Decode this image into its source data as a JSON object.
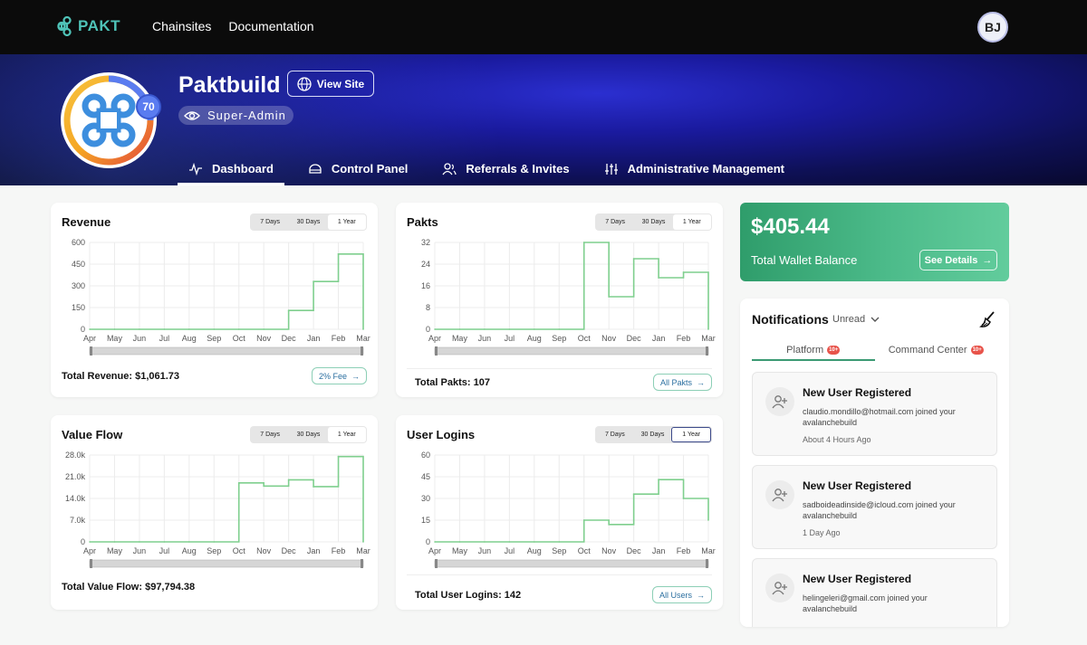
{
  "app": {
    "logo_text": "PAKT",
    "user_initials": "BJ"
  },
  "topnav": [
    "Chainsites",
    "Documentation"
  ],
  "org": {
    "name": "Paktbuild",
    "level": "70",
    "role": "Super-Admin",
    "view_site_label": "View Site"
  },
  "tabs": [
    {
      "label": "Dashboard",
      "icon": "activity-icon",
      "active": true
    },
    {
      "label": "Control Panel",
      "icon": "dashboard-gauge-icon",
      "active": false
    },
    {
      "label": "Referrals & Invites",
      "icon": "users-icon",
      "active": false
    },
    {
      "label": "Administrative Management",
      "icon": "sliders-icon",
      "active": false
    }
  ],
  "range_options": [
    "7 Days",
    "30 Days",
    "1 Year"
  ],
  "cards": {
    "revenue": {
      "title": "Revenue",
      "footer": "Total Revenue: $1,061.73",
      "button": "2% Fee"
    },
    "pakts": {
      "title": "Pakts",
      "footer": "Total Pakts: 107",
      "button": "All Pakts"
    },
    "value_flow": {
      "title": "Value Flow",
      "footer": "Total Value Flow: $97,794.38"
    },
    "user_logins": {
      "title": "User Logins",
      "footer": "Total User Logins: 142",
      "button": "All Users"
    }
  },
  "chart_data": [
    {
      "type": "line",
      "title": "Revenue",
      "selected_range": "1 Year",
      "x": [
        "Apr",
        "May",
        "Jun",
        "Jul",
        "Aug",
        "Sep",
        "Oct",
        "Nov",
        "Dec",
        "Jan",
        "Feb",
        "Mar"
      ],
      "values": [
        0,
        0,
        0,
        0,
        0,
        0,
        0,
        0,
        130,
        330,
        520,
        0
      ],
      "ylim": [
        0,
        600
      ],
      "yticks": [
        "0",
        "150",
        "300",
        "450",
        "600"
      ],
      "grid": true,
      "color": "#7fcf8e",
      "interpolation": "step"
    },
    {
      "type": "line",
      "title": "Pakts",
      "selected_range": "1 Year",
      "x": [
        "Apr",
        "May",
        "Jun",
        "Jul",
        "Aug",
        "Sep",
        "Oct",
        "Nov",
        "Dec",
        "Jan",
        "Feb",
        "Mar"
      ],
      "values": [
        0,
        0,
        0,
        0,
        0,
        0,
        32,
        12,
        26,
        19,
        21,
        0
      ],
      "ylim": [
        0,
        32
      ],
      "yticks": [
        "0",
        "8",
        "16",
        "24",
        "32"
      ],
      "grid": true,
      "color": "#7fcf8e",
      "interpolation": "step"
    },
    {
      "type": "line",
      "title": "Value Flow",
      "selected_range": "1 Year",
      "x": [
        "Apr",
        "May",
        "Jun",
        "Jul",
        "Aug",
        "Sep",
        "Oct",
        "Nov",
        "Dec",
        "Jan",
        "Feb",
        "Mar"
      ],
      "values": [
        0,
        0,
        0,
        0,
        0,
        0,
        19000,
        18000,
        20000,
        17800,
        27500,
        0
      ],
      "ylim": [
        0,
        28000
      ],
      "yticks": [
        "0",
        "7.0k",
        "14.0k",
        "21.0k",
        "28.0k"
      ],
      "grid": true,
      "color": "#7fcf8e",
      "interpolation": "step"
    },
    {
      "type": "line",
      "title": "User Logins",
      "selected_range": "1 Year",
      "x": [
        "Apr",
        "May",
        "Jun",
        "Jul",
        "Aug",
        "Sep",
        "Oct",
        "Nov",
        "Dec",
        "Jan",
        "Feb",
        "Mar"
      ],
      "values": [
        0,
        0,
        0,
        0,
        0,
        0,
        15,
        12,
        33,
        43,
        30,
        15
      ],
      "ylim": [
        0,
        60
      ],
      "yticks": [
        "0",
        "15",
        "30",
        "45",
        "60"
      ],
      "grid": true,
      "color": "#7fcf8e",
      "interpolation": "step"
    }
  ],
  "wallet": {
    "amount": "$405.44",
    "label": "Total Wallet Balance",
    "button": "See Details",
    "color": "#4cbb8a"
  },
  "notifications": {
    "title": "Notifications",
    "filter": "Unread",
    "tabs": [
      {
        "label": "Platform",
        "badge": "10+",
        "active": true
      },
      {
        "label": "Command Center",
        "badge": "10+",
        "active": false
      }
    ],
    "items": [
      {
        "title": "New User Registered",
        "body": "claudio.mondillo@hotmail.com joined your avalanchebuild",
        "time": "About 4 Hours Ago"
      },
      {
        "title": "New User Registered",
        "body": "sadboideadinside@icloud.com joined your avalanchebuild",
        "time": "1 Day Ago"
      },
      {
        "title": "New User Registered",
        "body": "helingeleri@gmail.com joined your avalanchebuild",
        "time": ""
      }
    ]
  }
}
